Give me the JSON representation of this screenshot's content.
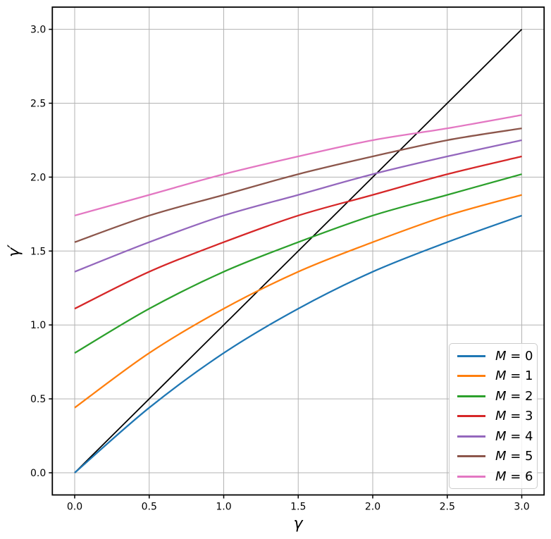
{
  "chart_data": {
    "type": "line",
    "title": "",
    "xlabel": "γ",
    "ylabel": "γ′",
    "x_ticks": [
      0.0,
      0.5,
      1.0,
      1.5,
      2.0,
      2.5,
      3.0
    ],
    "y_ticks": [
      0.0,
      0.5,
      1.0,
      1.5,
      2.0,
      2.5,
      3.0
    ],
    "x_tick_labels": [
      "0.0",
      "0.5",
      "1.0",
      "1.5",
      "2.0",
      "2.5",
      "3.0"
    ],
    "y_tick_labels": [
      "0.0",
      "0.5",
      "1.0",
      "1.5",
      "2.0",
      "2.5",
      "3.0"
    ],
    "xlim": [
      -0.15,
      3.15
    ],
    "ylim": [
      -0.15,
      3.15
    ],
    "grid": true,
    "grid_color": "#b3b3b3",
    "axis_color": "#000000",
    "legend_position": "lower right",
    "x": [
      0.0,
      0.5,
      1.0,
      1.5,
      2.0,
      2.5,
      3.0
    ],
    "series": [
      {
        "label": "M = 0",
        "label_var": "M",
        "label_rest": " = 0",
        "color": "#1f77b4",
        "values": [
          0.0,
          0.44,
          0.81,
          1.11,
          1.36,
          1.56,
          1.74
        ]
      },
      {
        "label": "M = 1",
        "label_var": "M",
        "label_rest": " = 1",
        "color": "#ff7f0e",
        "values": [
          0.44,
          0.81,
          1.11,
          1.36,
          1.56,
          1.74,
          1.88
        ]
      },
      {
        "label": "M = 2",
        "label_var": "M",
        "label_rest": " = 2",
        "color": "#2ca02c",
        "values": [
          0.81,
          1.11,
          1.36,
          1.56,
          1.74,
          1.88,
          2.02
        ]
      },
      {
        "label": "M = 3",
        "label_var": "M",
        "label_rest": " = 3",
        "color": "#d62728",
        "values": [
          1.11,
          1.36,
          1.56,
          1.74,
          1.88,
          2.02,
          2.14
        ]
      },
      {
        "label": "M = 4",
        "label_var": "M",
        "label_rest": " = 4",
        "color": "#9467bd",
        "values": [
          1.36,
          1.56,
          1.74,
          1.88,
          2.02,
          2.14,
          2.25
        ]
      },
      {
        "label": "M = 5",
        "label_var": "M",
        "label_rest": " = 5",
        "color": "#8c564b",
        "values": [
          1.56,
          1.74,
          1.88,
          2.02,
          2.14,
          2.25,
          2.33
        ]
      },
      {
        "label": "M = 6",
        "label_var": "M",
        "label_rest": " = 6",
        "color": "#e377c2",
        "values": [
          1.74,
          1.88,
          2.02,
          2.14,
          2.25,
          2.33,
          2.42
        ]
      }
    ],
    "reference_line": {
      "name": "identity",
      "color": "#000000",
      "x": [
        0.0,
        3.0
      ],
      "values": [
        0.0,
        3.0
      ]
    }
  }
}
